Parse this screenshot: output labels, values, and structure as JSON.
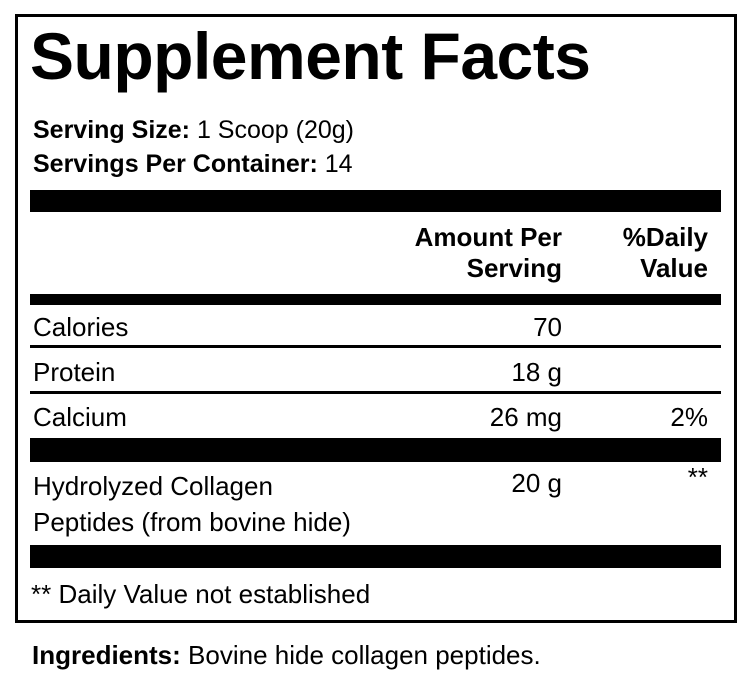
{
  "title": "Supplement Facts",
  "serving_size": {
    "label": "Serving Size:",
    "value": "1 Scoop (20g)"
  },
  "servings_per_container": {
    "label": "Servings Per Container:",
    "value": "14"
  },
  "columns": {
    "amount_line1": "Amount Per",
    "amount_line2": "Serving",
    "dv_line1": "%Daily",
    "dv_line2": "Value"
  },
  "rows": [
    {
      "name": "Calories",
      "amount": "70",
      "dv": ""
    },
    {
      "name": "Protein",
      "amount": "18 g",
      "dv": ""
    },
    {
      "name": "Calcium",
      "amount": "26 mg",
      "dv": "2%"
    },
    {
      "name_line1": "Hydrolyzed Collagen",
      "name_line2": "Peptides (from bovine hide)",
      "amount": "20 g",
      "dv": "**"
    }
  ],
  "footnote": "** Daily Value not established",
  "ingredients": {
    "label": "Ingredients:",
    "value": "Bovine hide collagen peptides."
  }
}
